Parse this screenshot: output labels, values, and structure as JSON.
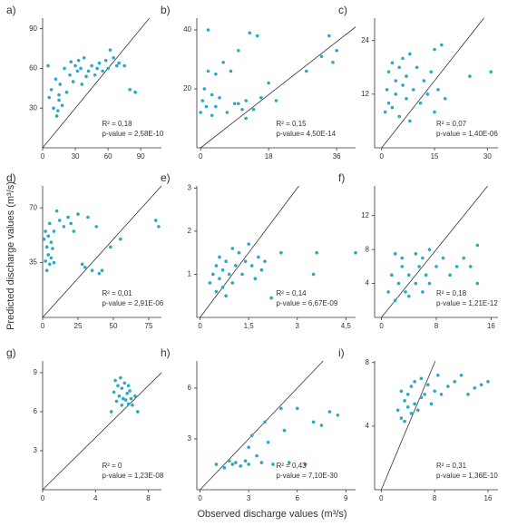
{
  "ylabel": "Predicted discharge values (m³/s)",
  "xlabel": "Observed discharge values (m³/s)",
  "chart_data": [
    {
      "type": "scatter",
      "label": "a)",
      "color": "#2aa9c6",
      "xlim": [
        0,
        109
      ],
      "ylim": [
        0,
        98
      ],
      "xticks": [
        0,
        30,
        60,
        90
      ],
      "yticks": [
        30,
        60,
        90
      ],
      "x": [
        5,
        6,
        8,
        10,
        12,
        13,
        14,
        15,
        15,
        16,
        18,
        20,
        22,
        25,
        26,
        28,
        30,
        32,
        33,
        35,
        36,
        38,
        40,
        42,
        45,
        48,
        50,
        52,
        55,
        58,
        60,
        62,
        65,
        68,
        70,
        75,
        80,
        85
      ],
      "values": [
        62,
        38,
        44,
        30,
        52,
        24,
        28,
        40,
        36,
        48,
        32,
        60,
        42,
        55,
        65,
        50,
        62,
        58,
        66,
        60,
        48,
        68,
        54,
        58,
        62,
        55,
        60,
        64,
        58,
        66,
        60,
        74,
        68,
        62,
        64,
        62,
        44,
        42
      ],
      "annotations": [
        "R² = 0,18",
        "p-value = 2,58E-10"
      ]
    },
    {
      "type": "scatter",
      "label": "b)",
      "color": "#2aa9c6",
      "xlim": [
        -1,
        41
      ],
      "ylim": [
        0,
        44
      ],
      "xticks": [
        0,
        18,
        36
      ],
      "yticks": [
        20,
        40
      ],
      "x": [
        0,
        0.5,
        1,
        1.5,
        2,
        2,
        3,
        3,
        4,
        4,
        5,
        6,
        7,
        8,
        9,
        10,
        10,
        11,
        12,
        12,
        13,
        14,
        15,
        16,
        18,
        20,
        28,
        32,
        34,
        35,
        36
      ],
      "values": [
        12,
        16,
        20,
        14,
        40,
        26,
        18,
        11,
        25,
        14,
        17,
        29,
        12,
        26,
        15,
        33,
        15,
        13,
        10,
        16,
        39,
        13,
        38,
        17,
        22,
        16,
        26,
        31,
        38,
        29,
        33
      ],
      "annotations": [
        "R² = 0,15",
        "p-value= 4,50E-14"
      ]
    },
    {
      "type": "scatter",
      "label": "c)",
      "color": "#2aa9c6",
      "xlim": [
        -2,
        33
      ],
      "ylim": [
        0,
        29
      ],
      "xticks": [
        0,
        15,
        30
      ],
      "yticks": [
        12,
        24
      ],
      "x": [
        1,
        1.5,
        2,
        2,
        3,
        3,
        4,
        4,
        5,
        5,
        6,
        6,
        7,
        7,
        8,
        8,
        9,
        10,
        11,
        12,
        13,
        14,
        15,
        15,
        16,
        17,
        18,
        25,
        31
      ],
      "values": [
        8,
        13,
        10,
        17,
        9,
        19,
        12,
        15,
        18,
        7,
        14,
        20,
        11,
        16,
        6,
        21,
        13,
        18,
        10,
        15,
        12,
        17,
        8,
        22,
        13,
        23,
        11,
        16,
        17
      ],
      "annotations": [
        "R² = 0,07",
        "p-value = 1,40E-06"
      ]
    },
    {
      "type": "scatter",
      "label": "d)",
      "color": "#2aa9c6",
      "xlim": [
        0,
        84
      ],
      "ylim": [
        0,
        84
      ],
      "xticks": [
        0,
        25,
        50,
        75
      ],
      "yticks": [
        35,
        70
      ],
      "x": [
        1,
        2,
        2,
        3,
        3,
        4,
        4,
        5,
        5,
        6,
        6,
        7,
        8,
        8,
        10,
        12,
        15,
        18,
        20,
        22,
        25,
        28,
        30,
        32,
        35,
        38,
        40,
        42,
        48,
        55,
        80,
        82
      ],
      "values": [
        50,
        36,
        55,
        30,
        45,
        52,
        40,
        60,
        34,
        48,
        38,
        44,
        55,
        35,
        68,
        62,
        58,
        64,
        60,
        55,
        66,
        34,
        32,
        64,
        30,
        58,
        28,
        30,
        45,
        50,
        62,
        58
      ],
      "annotations": [
        "R² = 0,01",
        "p-value = 2,91E-06"
      ]
    },
    {
      "type": "scatter",
      "label": "e)",
      "color": "#2aa9c6",
      "xlim": [
        -0.1,
        4.8
      ],
      "ylim": [
        0,
        3.05
      ],
      "xticks": [
        0,
        {
          "value": 1.5,
          "label": "1,5"
        },
        3,
        {
          "value": 4.5,
          "label": "4,5"
        }
      ],
      "yticks": [
        1,
        2,
        3
      ],
      "x": [
        0.3,
        0.4,
        0.5,
        0.5,
        0.6,
        0.6,
        0.7,
        0.7,
        0.8,
        0.8,
        0.9,
        1.0,
        1.0,
        1.1,
        1.2,
        1.3,
        1.4,
        1.5,
        1.6,
        1.7,
        1.8,
        1.9,
        2.0,
        2.2,
        2.5,
        3.5,
        3.6,
        4.8
      ],
      "values": [
        0.8,
        1.0,
        0.6,
        1.2,
        0.9,
        1.4,
        0.7,
        1.1,
        0.5,
        1.3,
        1.0,
        0.8,
        1.6,
        1.2,
        1.5,
        1.0,
        1.3,
        1.7,
        1.2,
        0.9,
        1.4,
        1.1,
        1.3,
        0.45,
        1.5,
        1.0,
        1.5,
        1.5
      ],
      "annotations": [
        "R² = 0,14",
        "p-value = 6,67E-09"
      ]
    },
    {
      "type": "scatter",
      "label": "f)",
      "color": "#2aa9c6",
      "xlim": [
        -1,
        17
      ],
      "ylim": [
        0,
        15.5
      ],
      "xticks": [
        0,
        8,
        16
      ],
      "yticks": [
        4,
        8,
        12
      ],
      "x": [
        1,
        1.5,
        2,
        2,
        2.5,
        3,
        3,
        3.5,
        4,
        4,
        5,
        5,
        5.5,
        6,
        6,
        6.5,
        7,
        7,
        8,
        9,
        10,
        11,
        12,
        13,
        14,
        14
      ],
      "values": [
        3,
        5,
        7.5,
        2,
        4,
        6,
        7,
        3,
        5,
        2.5,
        7.5,
        4,
        6,
        3,
        7,
        5,
        4,
        8,
        6,
        7,
        5,
        6,
        7,
        6,
        4,
        8.5
      ],
      "annotations": [
        "R² = 0,18",
        "p-value = 1,21E-12"
      ]
    },
    {
      "type": "scatter",
      "label": "g)",
      "color": "#2aa9c6",
      "xlim": [
        0,
        9
      ],
      "ylim": [
        0,
        9.9
      ],
      "xticks": [
        0,
        4,
        8
      ],
      "yticks": [
        3,
        6,
        9
      ],
      "x": [
        5.2,
        5.4,
        5.5,
        5.6,
        5.7,
        5.8,
        5.9,
        6.0,
        6.0,
        6.1,
        6.2,
        6.3,
        6.4,
        6.5,
        6.5,
        6.6,
        6.7,
        6.8,
        7.0,
        7.2
      ],
      "values": [
        6.0,
        7.5,
        8.4,
        6.8,
        8.0,
        7.2,
        8.6,
        6.5,
        7.8,
        7.0,
        8.2,
        6.9,
        7.4,
        6.6,
        8.0,
        7.6,
        7.0,
        6.5,
        7.2,
        6.0
      ],
      "annotations": [
        "R² = 0",
        "p-value = 1,23E-08"
      ]
    },
    {
      "type": "scatter",
      "label": "h)",
      "color": "#2aa9c6",
      "xlim": [
        -0.2,
        9.6
      ],
      "ylim": [
        0,
        7.6
      ],
      "xticks": [
        0,
        3,
        6,
        9
      ],
      "yticks": [
        3,
        6
      ],
      "x": [
        1,
        1.5,
        1.8,
        2,
        2.2,
        2.5,
        2.8,
        3,
        3,
        3.2,
        3.5,
        3.8,
        4,
        4.2,
        4.5,
        5,
        5.2,
        5.5,
        6,
        6.5,
        7,
        7.5,
        8,
        8.5
      ],
      "values": [
        1.5,
        1.3,
        1.7,
        1.5,
        1.6,
        1.4,
        1.7,
        2.5,
        1.5,
        3.2,
        2.0,
        1.6,
        4.0,
        2.8,
        1.5,
        4.8,
        3.5,
        1.6,
        4.8,
        1.5,
        4.0,
        3.8,
        4.6,
        4.4
      ],
      "annotations": [
        "R² = 0,43",
        "p-value = 7,10E-30"
      ]
    },
    {
      "type": "scatter",
      "label": "i)",
      "color": "#2aa9c6",
      "xlim": [
        -1,
        17.5
      ],
      "ylim": [
        0,
        8.1
      ],
      "xticks": [
        0,
        8,
        16
      ],
      "yticks": [
        4,
        8
      ],
      "x": [
        2.5,
        3,
        3,
        3.5,
        3.5,
        4,
        4,
        4.5,
        4.5,
        5,
        5,
        5.5,
        6,
        6,
        6.5,
        7,
        7.5,
        8,
        8.5,
        9,
        10,
        11,
        12,
        13,
        14,
        15,
        16
      ],
      "values": [
        5.0,
        6.2,
        4.5,
        5.6,
        4.3,
        6.0,
        5.2,
        4.8,
        6.5,
        5.4,
        6.8,
        5.0,
        7.0,
        5.8,
        6.0,
        6.6,
        5.4,
        6.2,
        7.2,
        6.0,
        6.5,
        6.8,
        7.2,
        6.0,
        6.4,
        6.6,
        6.8
      ],
      "annotations": [
        "R² = 0,31",
        "p-value = 1,36E-10"
      ]
    }
  ]
}
